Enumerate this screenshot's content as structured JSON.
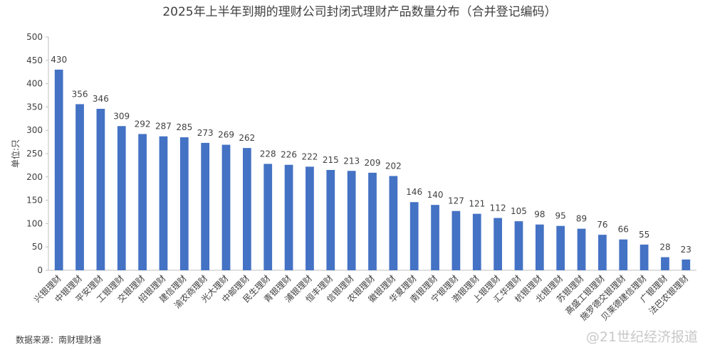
{
  "chart_data": {
    "type": "bar",
    "title": "2025年上半年到期的理财公司封闭式理财产品数量分布（合并登记编码）",
    "y_label": "单位:只",
    "source": "数据来源：南财理财通",
    "watermark": "@21世纪经济报道",
    "categories": [
      "兴银理财",
      "中银理财",
      "平安理财",
      "工银理财",
      "交银理财",
      "招银理财",
      "建信理财",
      "渝农商理财",
      "光大理财",
      "中邮理财",
      "民生理财",
      "青银理财",
      "浦银理财",
      "恒丰理财",
      "信银理财",
      "农银理财",
      "徽银理财",
      "华夏理财",
      "南银理财",
      "宁银理财",
      "渤银理财",
      "上银理财",
      "汇华理财",
      "杭银理财",
      "北银理财",
      "苏银理财",
      "高盛工银理财",
      "施罗德交银理财",
      "贝莱德建信理财",
      "广银理财",
      "法巴农银理财"
    ],
    "values": [
      430,
      356,
      346,
      309,
      292,
      287,
      285,
      273,
      269,
      262,
      228,
      226,
      222,
      215,
      213,
      209,
      202,
      146,
      140,
      127,
      121,
      112,
      105,
      98,
      95,
      89,
      76,
      66,
      55,
      28,
      23
    ],
    "color": "#4472c4",
    "ylim": [
      0,
      500
    ],
    "yticks": [
      0,
      50,
      100,
      150,
      200,
      250,
      300,
      350,
      400,
      450,
      500
    ],
    "grid": false
  }
}
